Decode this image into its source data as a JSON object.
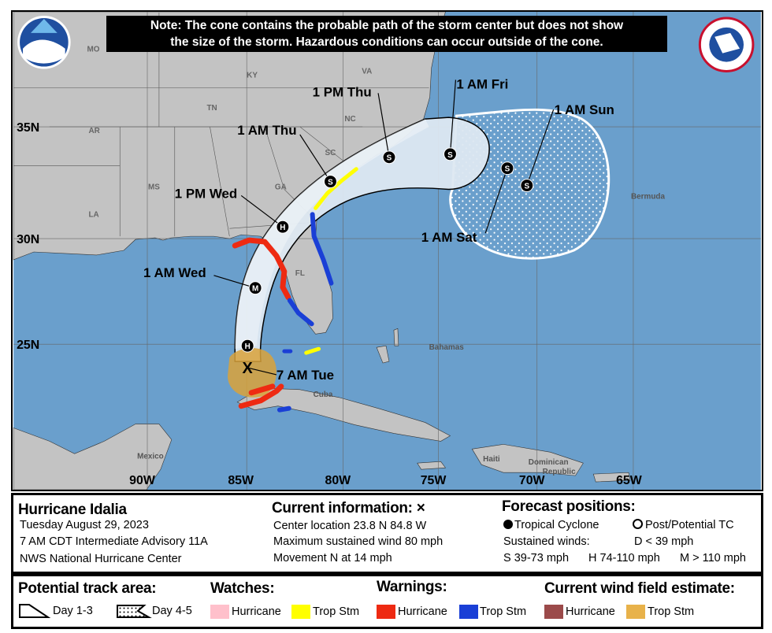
{
  "note": {
    "line1": "Note: The cone contains the probable path of the storm center but does not show",
    "line2": "the size of the storm. Hazardous conditions can occur outside of the cone."
  },
  "logos": {
    "left": "NOAA",
    "right": "NATIONAL WEATHER SERVICE"
  },
  "map": {
    "longitudes": [
      "90W",
      "85W",
      "80W",
      "75W",
      "70W",
      "65W"
    ],
    "latitudes": [
      "35N",
      "30N",
      "25N"
    ],
    "states": [
      "MO",
      "KY",
      "VA",
      "TN",
      "NC",
      "AR",
      "SC",
      "MS",
      "GA",
      "LA",
      "FL"
    ],
    "places": [
      "Bermuda",
      "Bahamas",
      "Cuba",
      "Mexico",
      "Haiti",
      "Dominican",
      "Republic"
    ],
    "forecast_points": [
      {
        "time": "7 AM Tue",
        "symbol": "X"
      },
      {
        "time": "",
        "symbol": "H"
      },
      {
        "time": "1 AM Wed",
        "symbol": "M"
      },
      {
        "time": "1 PM Wed",
        "symbol": "H"
      },
      {
        "time": "1 AM Thu",
        "symbol": "S"
      },
      {
        "time": "1 PM Thu",
        "symbol": "S"
      },
      {
        "time": "1 AM Fri",
        "symbol": "S"
      },
      {
        "time": "1 AM Sat",
        "symbol": "S"
      },
      {
        "time": "1 AM Sun",
        "symbol": "S"
      }
    ],
    "colors": {
      "ocean": "#6a9fcc",
      "land": "#c3c3c3",
      "cone": "#dde8f1",
      "hurricane_warning": "#ee2a12",
      "trop_storm_warning": "#1a3fd6",
      "trop_storm_watch": "#ffff00",
      "hurricane_watch": "#ffc0cb",
      "wind_hurricane": "#9b4a4a",
      "wind_trop_storm": "#e4a93c"
    }
  },
  "info": {
    "storm_name": "Hurricane Idalia",
    "date": "Tuesday August 29, 2023",
    "advisory": "7 AM CDT Intermediate Advisory 11A",
    "center": "NWS National Hurricane Center",
    "current_title": "Current information: ×",
    "location": "Center location 23.8 N 84.8 W",
    "max_wind": "Maximum sustained wind 80 mph",
    "movement": "Movement N at 14 mph",
    "forecast_title": "Forecast positions:",
    "tropical_cyclone": "Tropical Cyclone",
    "post_tc": "Post/Potential TC",
    "sustained": "Sustained winds:",
    "d": "D < 39 mph",
    "s": "S 39-73 mph",
    "hh": "H 74-110 mph",
    "m": "M > 110 mph"
  },
  "legend": {
    "track_title": "Potential track area:",
    "day13": "Day 1-3",
    "day45": "Day 4-5",
    "watches_title": "Watches:",
    "watch_hurricane": "Hurricane",
    "watch_ts": "Trop Stm",
    "warnings_title": "Warnings:",
    "warn_hurricane": "Hurricane",
    "warn_ts": "Trop Stm",
    "wind_title": "Current wind field estimate:",
    "wind_hurricane": "Hurricane",
    "wind_ts": "Trop Stm"
  }
}
